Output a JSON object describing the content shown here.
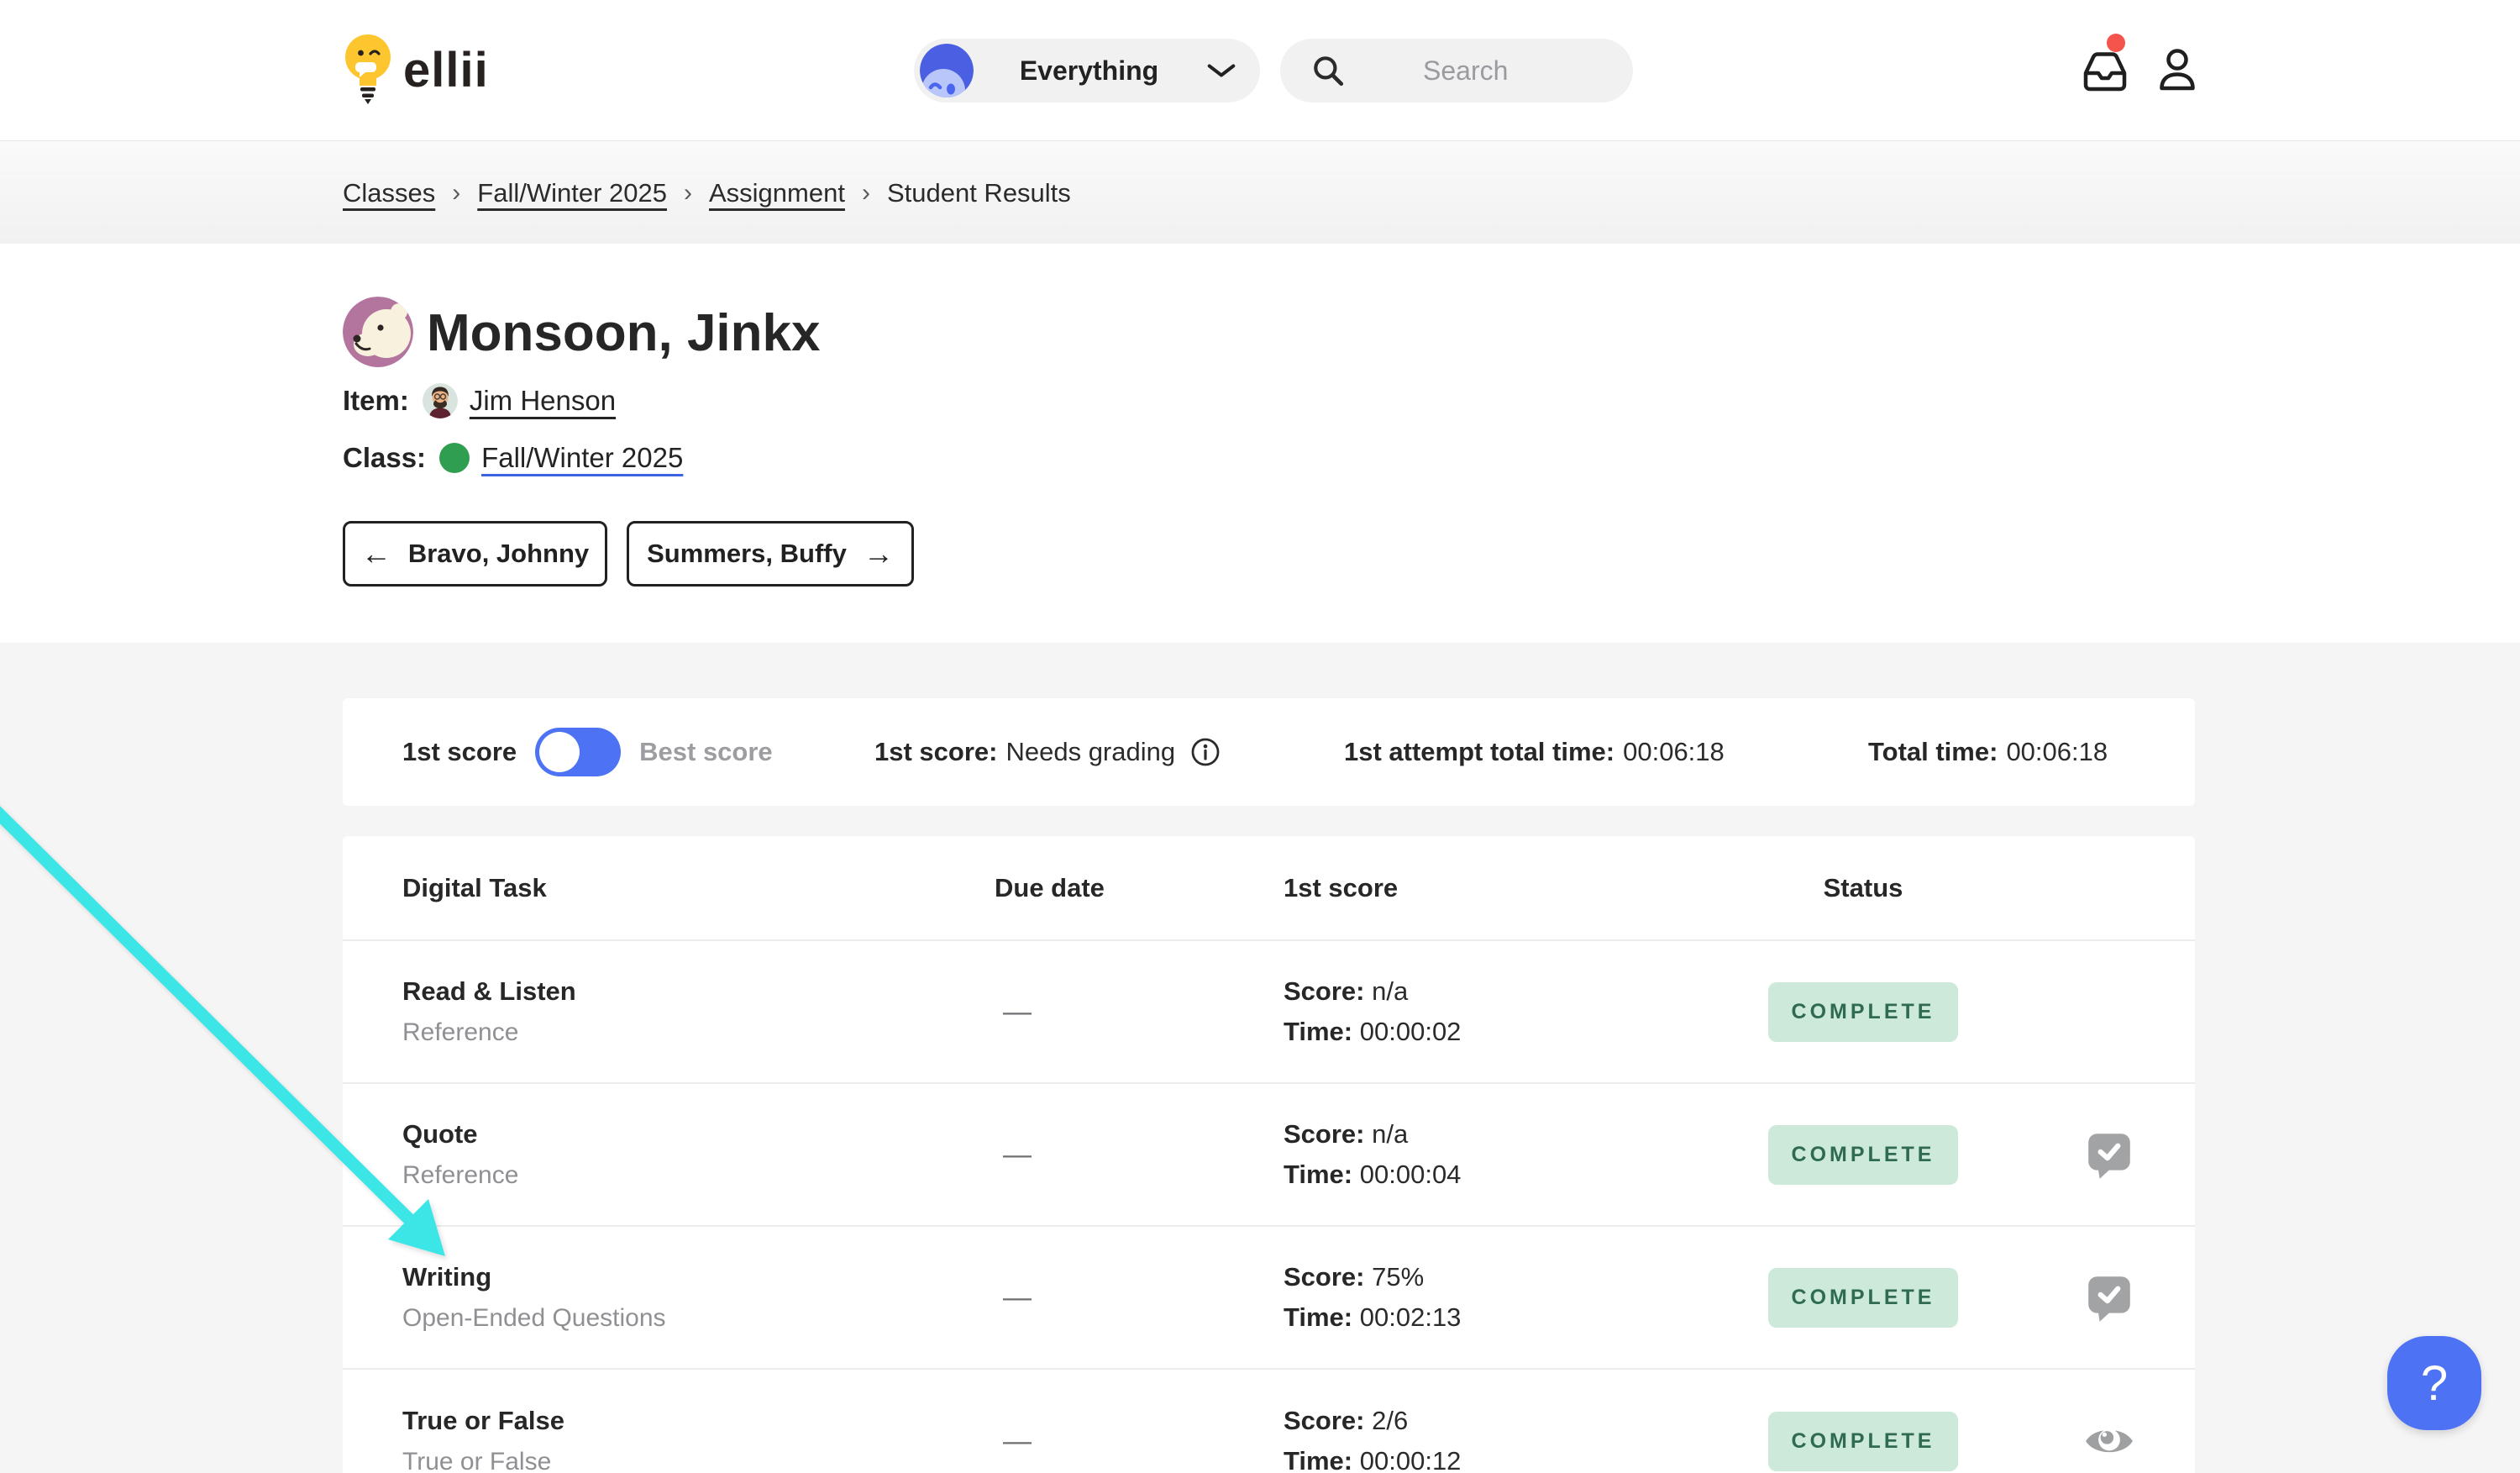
{
  "header": {
    "logo": "ellii",
    "scope": {
      "label": "Everything"
    },
    "search": {
      "placeholder": "Search"
    }
  },
  "breadcrumb": {
    "separator": "›",
    "items": [
      {
        "label": "Classes",
        "link": true
      },
      {
        "label": "Fall/Winter 2025",
        "link": true
      },
      {
        "label": "Assignment",
        "link": true
      },
      {
        "label": "Student Results",
        "link": false
      }
    ]
  },
  "student": {
    "name": "Monsoon, Jinkx",
    "item_label": "Item:",
    "item_value": "Jim Henson",
    "class_label": "Class:",
    "class_value": "Fall/Winter 2025",
    "prev_student": "Bravo, Johnny",
    "next_student": "Summers, Buffy"
  },
  "icons": {
    "back_arrow": "←",
    "forward_arrow": "→"
  },
  "score_bar": {
    "first_score_label": "1st score",
    "best_score_label": "Best score",
    "status_label": "1st score:",
    "status_value": "Needs grading",
    "attempt_label": "1st attempt total time:",
    "attempt_value": "00:06:18",
    "total_label": "Total time:",
    "total_value": "00:06:18"
  },
  "table": {
    "headers": {
      "task": "Digital Task",
      "due": "Due date",
      "score": "1st score",
      "status": "Status"
    },
    "score_prefix": "Score:",
    "time_prefix": "Time:",
    "rows": [
      {
        "title": "Read & Listen",
        "subtitle": "Reference",
        "due": "—",
        "score": "n/a",
        "time": "00:00:02",
        "status": "COMPLETE",
        "icon": ""
      },
      {
        "title": "Quote",
        "subtitle": "Reference",
        "due": "—",
        "score": "n/a",
        "time": "00:00:04",
        "status": "COMPLETE",
        "icon": "comment-check"
      },
      {
        "title": "Writing",
        "subtitle": "Open-Ended Questions",
        "due": "—",
        "score": "75%",
        "time": "00:02:13",
        "status": "COMPLETE",
        "icon": "comment-check"
      },
      {
        "title": "True or False",
        "subtitle": "True or False",
        "due": "—",
        "score": "2/6",
        "time": "00:00:12",
        "status": "COMPLETE",
        "icon": "eye"
      }
    ]
  },
  "help_button": {
    "label": "?"
  },
  "colors": {
    "accent_blue": "#4d72f4",
    "badge_bg": "#cce9d9",
    "badge_text": "#2f6c4f",
    "arrow_cyan": "#3ce5e6",
    "notification_red": "#f4544c",
    "class_dot_green": "#2f9e50"
  }
}
